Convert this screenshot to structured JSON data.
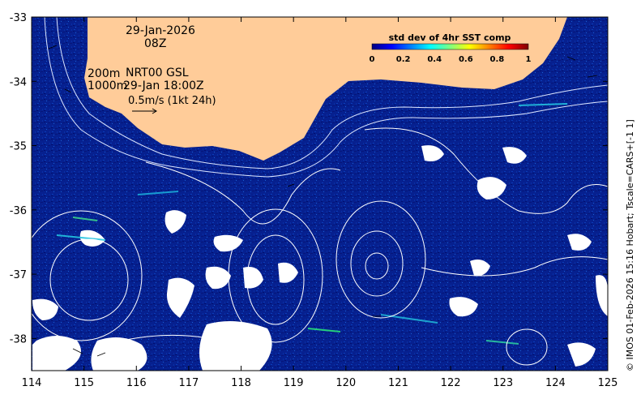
{
  "map": {
    "date_label": "29-Jan-2026",
    "time_label": "08Z",
    "contour_label_200": "200m",
    "contour_label_1000": "1000m",
    "source_label": "NRT00 GSL",
    "source_time": "29-Jan 18:00Z",
    "vector_scale_label": "0.5m/s (1kt 24h)",
    "credit": "© IMOS 01-Feb-2026 15:16 Hobart; Tscale=CARS+[-1 1]",
    "x_axis": {
      "range": [
        114,
        125
      ],
      "ticks": [
        "114",
        "115",
        "116",
        "117",
        "118",
        "119",
        "120",
        "121",
        "122",
        "123",
        "124",
        "125"
      ]
    },
    "y_axis": {
      "range": [
        -38.5,
        -33
      ],
      "ticks": [
        "-33",
        "-34",
        "-35",
        "-36",
        "-37",
        "-38"
      ]
    },
    "colorbar": {
      "title": "std dev of 4hr SST comp",
      "ticks": [
        "0",
        "0.2",
        "0.4",
        "0.6",
        "0.8",
        "1"
      ],
      "range": [
        0,
        1
      ]
    },
    "colors": {
      "ocean": "#06208f",
      "land": "#ffcc99",
      "contour": "#ffffff",
      "cloud": "#ffffff"
    }
  }
}
